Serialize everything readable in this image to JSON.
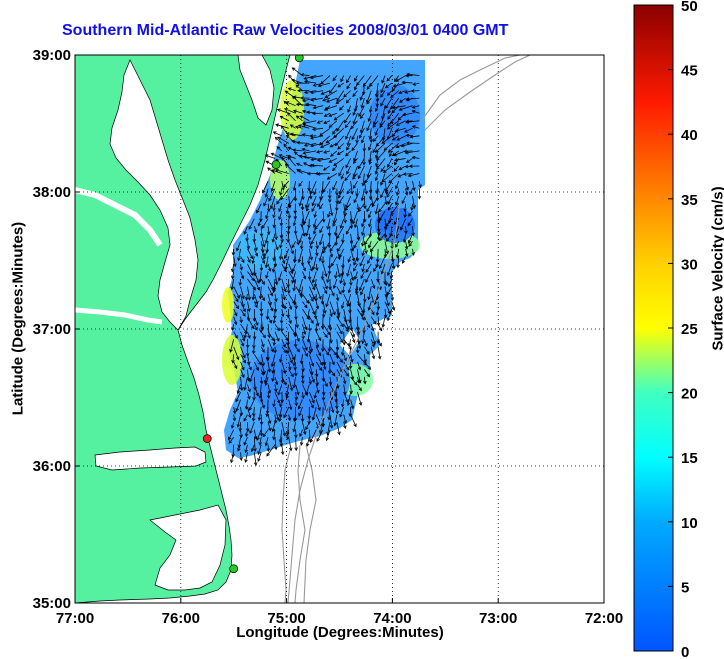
{
  "title": "Southern Mid-Atlantic Raw Velocities 2008/03/01 0400 GMT",
  "x_axis": {
    "label": "Longitude (Degrees:Minutes)",
    "ticks": [
      "77:00",
      "76:00",
      "75:00",
      "74:00",
      "73:00",
      "72:00"
    ]
  },
  "y_axis": {
    "label": "Latitude (Degrees:Minutes)",
    "ticks": [
      "39:00",
      "38:00",
      "37:00",
      "36:00",
      "35:00"
    ]
  },
  "colorbar": {
    "label": "Surface Velocity (cm/s)",
    "ticks": [
      "50",
      "45",
      "40",
      "35",
      "30",
      "25",
      "20",
      "15",
      "10",
      "5",
      "0"
    ],
    "range": [
      0,
      50
    ],
    "colormap": "jet"
  },
  "map": {
    "lon_range": [
      -77,
      -72
    ],
    "lat_range": [
      35,
      39
    ],
    "land_color": "#55f0a0",
    "grid": "dotted",
    "stations": [
      {
        "lon": -74.88,
        "lat": 38.98,
        "color": "#22cc22"
      },
      {
        "lon": -75.1,
        "lat": 38.2,
        "color": "#22cc22"
      },
      {
        "lon": -75.75,
        "lat": 36.2,
        "color": "#ee2222"
      },
      {
        "lon": -75.5,
        "lat": 35.25,
        "color": "#22cc22"
      }
    ],
    "velocity_field": {
      "lon_range": [
        -75.5,
        -73.7
      ],
      "lat_range": [
        36.1,
        38.85
      ],
      "typical_speed_cm_s": [
        3,
        25
      ]
    }
  }
}
